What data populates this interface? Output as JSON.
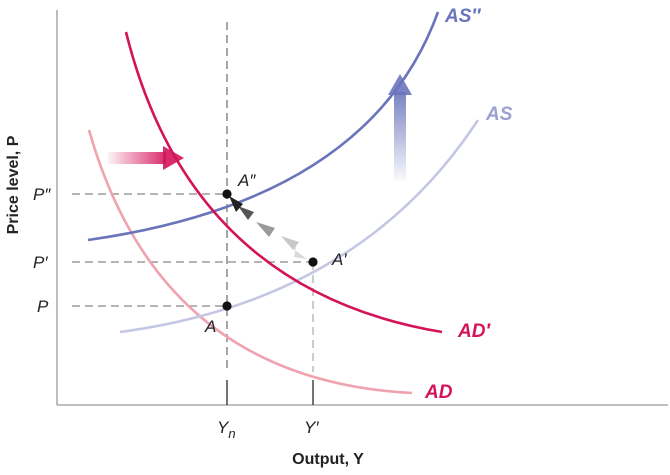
{
  "axes": {
    "x_title": "Output, Y",
    "y_title": "Price level, P"
  },
  "ticks": {
    "y": {
      "p2": "P″",
      "p1": "P′",
      "p0": "P"
    },
    "x": {
      "yn_main": "Y",
      "yn_sub": "n",
      "y1": "Y′"
    }
  },
  "points": {
    "a": "A",
    "a1": "A′",
    "a2": "A″"
  },
  "curves": {
    "as": "AS",
    "as2": "AS″",
    "ad": "AD",
    "ad1": "AD′"
  },
  "colors": {
    "as": "#c3c7e4",
    "as2": "#6a74bb",
    "ad": "#f0a3ae",
    "ad1": "#d4145a",
    "axis": "#999999",
    "guide": "#888888"
  }
}
